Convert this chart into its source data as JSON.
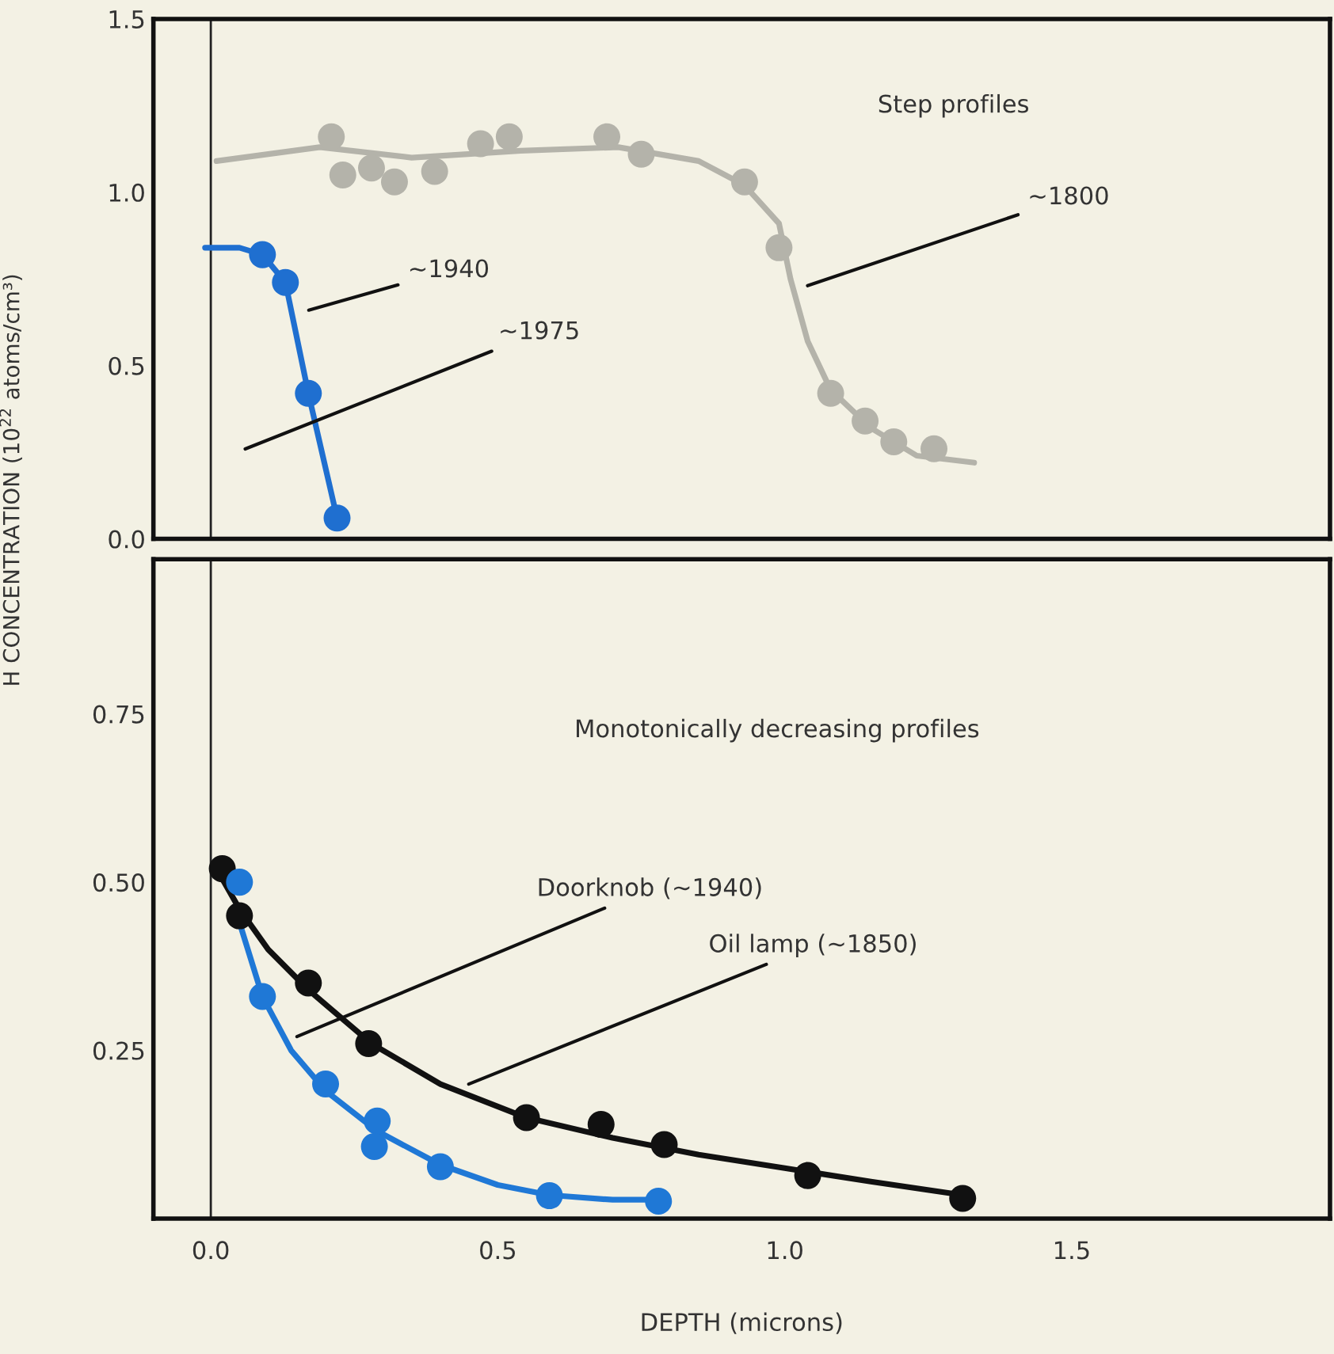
{
  "chart_data": [
    {
      "type": "scatter",
      "title": "Step profiles",
      "xlim": [
        -0.1,
        1.95
      ],
      "ylim": [
        0,
        1.5
      ],
      "xticks": [
        {
          "value": 0.5,
          "label": null
        },
        {
          "value": 1.0,
          "label": null
        },
        {
          "value": 1.5,
          "label": null
        }
      ],
      "yticks": [
        {
          "value": 0,
          "label": "0.0"
        },
        {
          "value": 0.5,
          "label": "0.5"
        },
        {
          "value": 1.0,
          "label": "1.0"
        },
        {
          "value": 1.5,
          "label": "1.5"
        }
      ],
      "tick_labels": "y",
      "grid": false,
      "legend": false,
      "ref_lines": [
        {
          "axis": "x",
          "value": 0,
          "color": "#222222"
        }
      ],
      "series": [
        {
          "color": "#b4b3aa",
          "x": [
            0.21,
            0.23,
            0.28,
            0.32,
            0.39,
            0.47,
            0.52,
            0.69,
            0.75,
            0.93,
            0.99,
            1.08,
            1.14,
            1.19,
            1.26
          ],
          "values": [
            1.16,
            1.05,
            1.07,
            1.03,
            1.06,
            1.14,
            1.16,
            1.16,
            1.11,
            1.03,
            0.84,
            0.42,
            0.34,
            0.28,
            0.26
          ]
        },
        {
          "type": "line",
          "color": "#b4b3aa",
          "x": [
            0.01,
            0.19,
            0.35,
            0.54,
            0.71,
            0.85,
            0.93,
            0.99,
            1.01,
            1.04,
            1.08,
            1.15,
            1.23,
            1.33
          ],
          "values": [
            1.09,
            1.13,
            1.1,
            1.12,
            1.13,
            1.09,
            1.02,
            0.91,
            0.75,
            0.57,
            0.43,
            0.32,
            0.24,
            0.22
          ]
        },
        {
          "color": "#1f6fd0",
          "x": [
            0.09,
            0.13,
            0.17,
            0.22
          ],
          "values": [
            0.82,
            0.74,
            0.42,
            0.06
          ]
        },
        {
          "type": "line",
          "color": "#1f6fd0",
          "x": [
            -0.01,
            0.05,
            0.09,
            0.13,
            0.17,
            0.22
          ],
          "values": [
            0.84,
            0.84,
            0.82,
            0.74,
            0.42,
            0.06
          ]
        }
      ],
      "annotations": [
        "~1940",
        "~1975",
        "~1800"
      ]
    },
    {
      "type": "scatter",
      "title": "Monotonically decreasing profiles",
      "xlabel": "DEPTH (microns)",
      "ylabel": "H CONCENTRATION (10$^{22}$ atoms/cm³)",
      "xlim": [
        -0.1,
        1.95
      ],
      "ylim": [
        0,
        0.98
      ],
      "xticks": [
        {
          "value": 0,
          "label": "0.0"
        },
        {
          "value": 0.5,
          "label": "0.5"
        },
        {
          "value": 1.0,
          "label": "1.0"
        },
        {
          "value": 1.5,
          "label": "1.5"
        }
      ],
      "yticks": [
        {
          "value": 0.25,
          "label": "0.25"
        },
        {
          "value": 0.5,
          "label": "0.50"
        },
        {
          "value": 0.75,
          "label": "0.75"
        }
      ],
      "grid": false,
      "legend": false,
      "ref_lines": [
        {
          "axis": "x",
          "value": 0,
          "color": "#222222"
        }
      ],
      "series": [
        {
          "color": "#111111",
          "x": [
            0.02,
            0.05,
            0.17,
            0.275,
            0.55,
            0.68,
            0.79,
            1.04,
            1.31
          ],
          "values": [
            0.52,
            0.45,
            0.35,
            0.26,
            0.15,
            0.14,
            0.11,
            0.064,
            0.03
          ]
        },
        {
          "type": "line",
          "color": "#111111",
          "x": [
            0.01,
            0.05,
            0.1,
            0.17,
            0.28,
            0.4,
            0.55,
            0.7,
            0.85,
            1.0,
            1.15,
            1.31
          ],
          "values": [
            0.52,
            0.46,
            0.4,
            0.34,
            0.26,
            0.2,
            0.15,
            0.12,
            0.095,
            0.075,
            0.055,
            0.035
          ]
        },
        {
          "color": "#1f78d6",
          "x": [
            0.05,
            0.09,
            0.2,
            0.29,
            0.285,
            0.4,
            0.59,
            0.78
          ],
          "values": [
            0.5,
            0.33,
            0.2,
            0.145,
            0.107,
            0.077,
            0.034,
            0.026
          ]
        },
        {
          "type": "line",
          "color": "#1f78d6",
          "x": [
            0.05,
            0.09,
            0.14,
            0.2,
            0.29,
            0.4,
            0.5,
            0.59,
            0.7,
            0.78
          ],
          "values": [
            0.44,
            0.33,
            0.25,
            0.19,
            0.13,
            0.08,
            0.05,
            0.035,
            0.028,
            0.028
          ]
        }
      ],
      "annotations": [
        "Doorknob (~1940)",
        "Oil lamp (~1850)"
      ]
    }
  ]
}
